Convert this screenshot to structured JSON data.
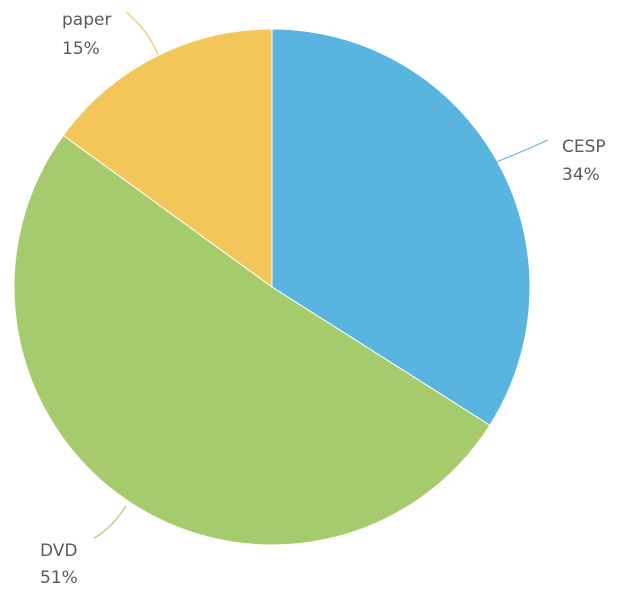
{
  "chart_data": {
    "type": "pie",
    "slices": [
      {
        "name": "CESP",
        "value": 34,
        "label": "34%",
        "color": "#5ab4e0"
      },
      {
        "name": "DVD",
        "value": 51,
        "label": "51%",
        "color": "#a6cb6c"
      },
      {
        "name": "paper",
        "value": 15,
        "label": "15%",
        "color": "#f3c65a"
      }
    ],
    "start_angle_deg": 0,
    "direction": "clockwise",
    "legend": "none",
    "labels_outside_with_leader_lines": true
  }
}
